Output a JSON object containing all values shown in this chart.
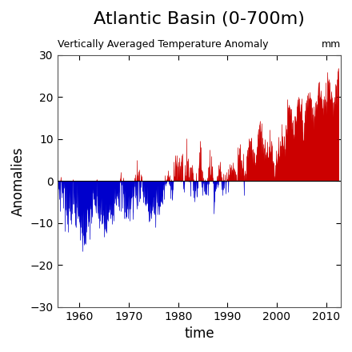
{
  "title": "Atlantic Basin (0-700m)",
  "subtitle": "Vertically Averaged Temperature Anomaly",
  "unit_label": "mm",
  "xlabel": "time",
  "ylabel": "Anomalies",
  "xlim": [
    1955.5,
    2013.0
  ],
  "ylim": [
    -30,
    30
  ],
  "xticks": [
    1960,
    1970,
    1980,
    1990,
    2000,
    2010
  ],
  "yticks": [
    -30,
    -20,
    -10,
    0,
    10,
    20,
    30
  ],
  "color_positive": "#cc0000",
  "color_negative": "#0000cc",
  "background_color": "#ffffff",
  "title_fontsize": 16,
  "subtitle_fontsize": 9,
  "label_fontsize": 12,
  "tick_fontsize": 10
}
